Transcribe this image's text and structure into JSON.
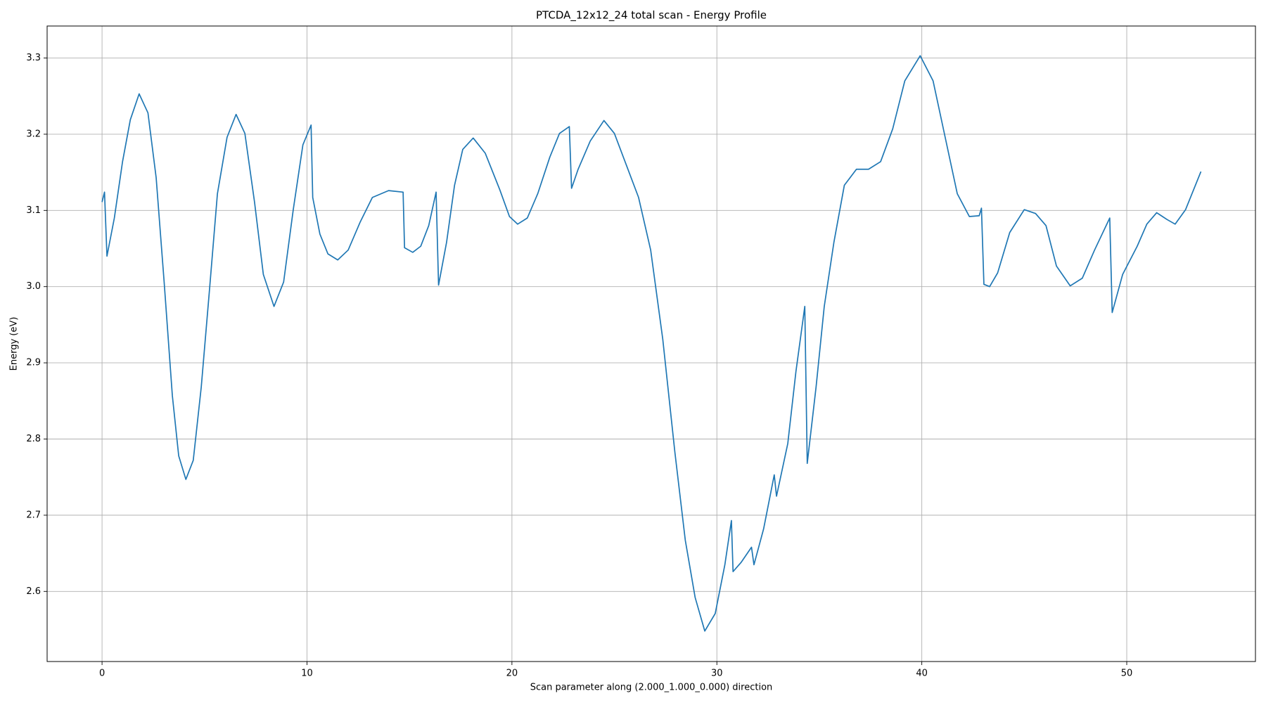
{
  "chart_data": {
    "type": "line",
    "title": "PTCDA_12x12_24 total scan - Energy Profile",
    "x_label": "Scan parameter along (2.000_1.000_0.000) direction",
    "y_label": "Energy (eV)",
    "grid": true,
    "xlim": [
      -2.68,
      56.28
    ],
    "ylim": [
      2.508,
      3.342
    ],
    "xticks": [
      0,
      10,
      20,
      30,
      40,
      50
    ],
    "yticks": [
      2.6,
      2.7,
      2.8,
      2.9,
      {
        "value": 3,
        "label": "3.0"
      },
      3.1,
      3.2,
      3.3
    ],
    "x": [
      0,
      0.12,
      0.24,
      0.6,
      1.0,
      1.38,
      1.81,
      2.24,
      2.64,
      3.03,
      3.43,
      3.74,
      4.09,
      4.45,
      4.84,
      5.24,
      5.63,
      6.1,
      6.54,
      6.97,
      7.44,
      7.87,
      8.39,
      8.86,
      9.33,
      9.8,
      10.2,
      10.28,
      10.63,
      11.02,
      11.5,
      12.01,
      12.6,
      13.19,
      13.98,
      14.69,
      14.76,
      15.16,
      15.55,
      15.94,
      16.3,
      16.42,
      16.81,
      17.2,
      17.6,
      18.11,
      18.7,
      19.41,
      19.88,
      20.28,
      20.75,
      21.26,
      21.85,
      22.32,
      22.8,
      22.91,
      23.23,
      23.82,
      24.49,
      25.0,
      25.59,
      26.18,
      26.77,
      27.36,
      27.95,
      28.46,
      28.94,
      29.41,
      29.92,
      30.39,
      30.71,
      30.79,
      31.18,
      31.69,
      31.81,
      32.28,
      32.8,
      32.91,
      33.46,
      33.86,
      34.29,
      34.41,
      34.84,
      35.24,
      35.71,
      36.22,
      36.81,
      37.4,
      37.99,
      38.58,
      39.17,
      39.92,
      40.55,
      41.14,
      41.73,
      42.32,
      42.8,
      42.91,
      43.03,
      43.31,
      43.7,
      44.29,
      45.0,
      45.55,
      46.06,
      46.57,
      47.24,
      47.83,
      48.43,
      49.17,
      49.29,
      49.8,
      50.51,
      50.98,
      51.46,
      51.97,
      52.36,
      52.87,
      53.62
    ],
    "series": [
      {
        "color": "#1f77b4",
        "values": [
          3.111,
          3.124,
          3.04,
          3.09,
          3.164,
          3.219,
          3.253,
          3.228,
          3.143,
          3.006,
          2.857,
          2.778,
          2.747,
          2.772,
          2.868,
          2.995,
          3.122,
          3.196,
          3.226,
          3.201,
          3.111,
          3.016,
          2.974,
          3.006,
          3.101,
          3.186,
          3.212,
          3.117,
          3.069,
          3.043,
          3.035,
          3.048,
          3.085,
          3.117,
          3.126,
          3.124,
          3.051,
          3.045,
          3.053,
          3.08,
          3.124,
          3.002,
          3.058,
          3.133,
          3.18,
          3.195,
          3.175,
          3.127,
          3.092,
          3.082,
          3.09,
          3.122,
          3.17,
          3.201,
          3.21,
          3.129,
          3.154,
          3.191,
          3.218,
          3.201,
          3.159,
          3.117,
          3.048,
          2.931,
          2.783,
          2.667,
          2.592,
          2.548,
          2.571,
          2.635,
          2.693,
          2.626,
          2.638,
          2.658,
          2.635,
          2.682,
          2.753,
          2.725,
          2.794,
          2.889,
          2.974,
          2.768,
          2.868,
          2.974,
          3.058,
          3.133,
          3.154,
          3.154,
          3.164,
          3.207,
          3.27,
          3.303,
          3.27,
          3.196,
          3.122,
          3.092,
          3.093,
          3.103,
          3.003,
          3.0,
          3.018,
          3.071,
          3.101,
          3.096,
          3.08,
          3.027,
          3.001,
          3.011,
          3.048,
          3.09,
          2.966,
          3.016,
          3.053,
          3.082,
          3.097,
          3.088,
          3.082,
          3.101,
          3.151
        ]
      }
    ]
  }
}
